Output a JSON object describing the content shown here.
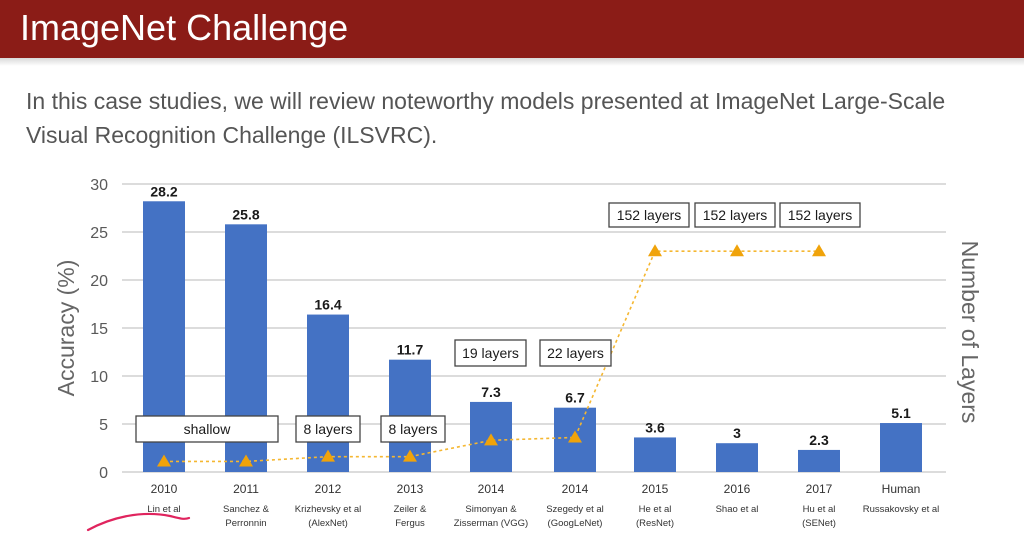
{
  "header": {
    "title": "ImageNet Challenge"
  },
  "intro": {
    "text": "In this case studies, we will review noteworthy models presented at ImageNet Large-Scale Visual Recognition Challenge (ILSVRC)."
  },
  "colors": {
    "title_bar": "#8b1c17",
    "bar": "#4472c4",
    "marker": "#f0a30a",
    "connector": "#f5b731"
  },
  "chart_data": {
    "type": "bar",
    "ylabel": "Accuracy (%)",
    "y2label": "Number of Layers",
    "ylim": [
      0,
      30
    ],
    "yticks": [
      0,
      5,
      10,
      15,
      20,
      25,
      30
    ],
    "grid": true,
    "categories": [
      {
        "year": "2010",
        "who": [
          "Lin et al"
        ]
      },
      {
        "year": "2011",
        "who": [
          "Sanchez &",
          "Perronnin"
        ]
      },
      {
        "year": "2012",
        "who": [
          "Krizhevsky et al",
          "(AlexNet)"
        ]
      },
      {
        "year": "2013",
        "who": [
          "Zeiler &",
          "Fergus"
        ]
      },
      {
        "year": "2014",
        "who": [
          "Simonyan &",
          "Zisserman (VGG)"
        ]
      },
      {
        "year": "2014",
        "who": [
          "Szegedy et al",
          "(GoogLeNet)"
        ]
      },
      {
        "year": "2015",
        "who": [
          "He et al",
          "(ResNet)"
        ]
      },
      {
        "year": "2016",
        "who": [
          "Shao et al"
        ]
      },
      {
        "year": "2017",
        "who": [
          "Hu et al",
          "(SENet)"
        ]
      },
      {
        "year": "Human",
        "who": [
          "Russakovsky et al"
        ]
      }
    ],
    "values": [
      28.2,
      25.8,
      16.4,
      11.7,
      7.3,
      6.7,
      3.6,
      3,
      2.3,
      5.1
    ],
    "value_labels": [
      "28.2",
      "25.8",
      "16.4",
      "11.7",
      "7.3",
      "6.7",
      "3.6",
      "3",
      "2.3",
      "5.1"
    ],
    "layers": {
      "values": [
        1,
        1,
        8,
        8,
        19,
        22,
        152,
        152,
        152,
        null
      ],
      "plotted_at": [
        1.1,
        1.1,
        1.6,
        1.6,
        3.3,
        3.6,
        23,
        23,
        23,
        null
      ]
    },
    "layer_labels": [
      {
        "text": "shallow",
        "points": [
          0,
          1
        ]
      },
      {
        "text": "8 layers",
        "points": [
          2
        ]
      },
      {
        "text": "8 layers",
        "points": [
          3
        ]
      },
      {
        "text": "19 layers",
        "points": [
          4
        ]
      },
      {
        "text": "22 layers",
        "points": [
          5
        ]
      },
      {
        "text": "152 layers",
        "points": [
          6
        ]
      },
      {
        "text": "152 layers",
        "points": [
          7
        ]
      },
      {
        "text": "152 layers",
        "points": [
          8
        ]
      }
    ]
  }
}
